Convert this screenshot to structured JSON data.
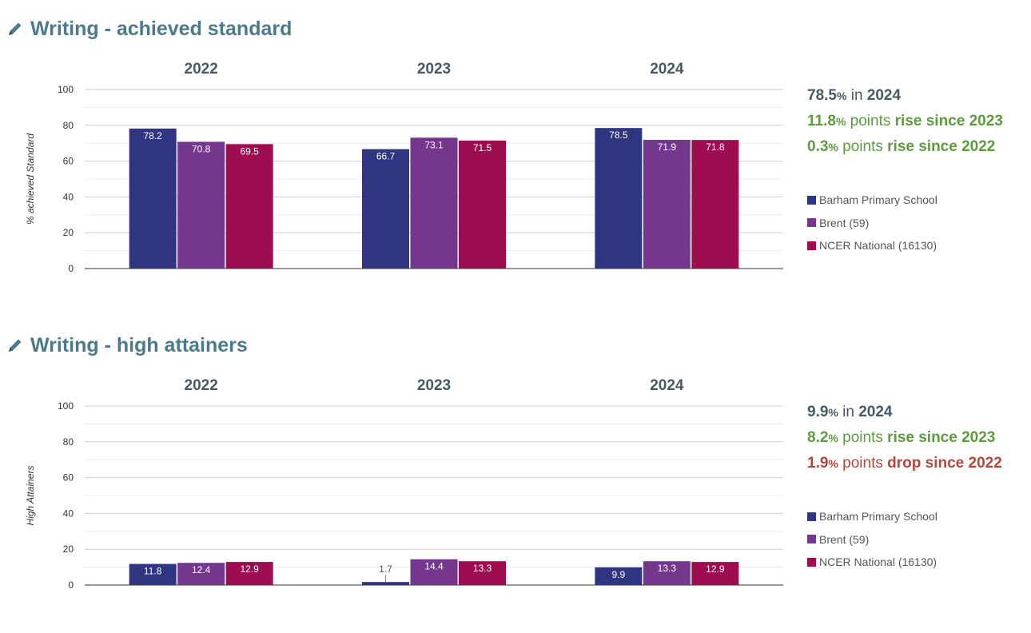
{
  "colors": {
    "school": "#2f3580",
    "la": "#75378e",
    "national": "#9e0d4f"
  },
  "sections": [
    {
      "title": "Writing - achieved standard",
      "icon": "pencil-icon",
      "summary": [
        {
          "value": "78.5",
          "unit": "%",
          "text": " in ",
          "strong": "2024",
          "tone": "neutral"
        },
        {
          "value": "11.8",
          "unit": "%",
          "text": " points ",
          "strong": "rise since 2023",
          "tone": "rise"
        },
        {
          "value": "0.3",
          "unit": "%",
          "text": " points ",
          "strong": "rise since 2022",
          "tone": "rise"
        }
      ],
      "legend": [
        "Barham Primary School",
        "Brent (59)",
        "NCER National (16130)"
      ],
      "chart_data": {
        "type": "bar",
        "categories": [
          "2022",
          "2023",
          "2024"
        ],
        "ylabel": "% achieved Standard",
        "ylim": [
          0,
          100
        ],
        "yticks": [
          0,
          20,
          40,
          60,
          80,
          100
        ],
        "grid": true,
        "legend_position": "right",
        "series": [
          {
            "name": "Barham Primary School",
            "values": [
              78.2,
              66.7,
              78.5
            ]
          },
          {
            "name": "Brent (59)",
            "values": [
              70.8,
              73.1,
              71.9
            ]
          },
          {
            "name": "NCER National (16130)",
            "values": [
              69.5,
              71.5,
              71.8
            ]
          }
        ]
      }
    },
    {
      "title": "Writing - high attainers",
      "icon": "pencil-icon",
      "summary": [
        {
          "value": "9.9",
          "unit": "%",
          "text": " in ",
          "strong": "2024",
          "tone": "neutral"
        },
        {
          "value": "8.2",
          "unit": "%",
          "text": " points ",
          "strong": "rise since 2023",
          "tone": "rise"
        },
        {
          "value": "1.9",
          "unit": "%",
          "text": " points ",
          "strong": "drop since 2022",
          "tone": "drop"
        }
      ],
      "legend": [
        "Barham Primary School",
        "Brent (59)",
        "NCER National (16130)"
      ],
      "chart_data": {
        "type": "bar",
        "categories": [
          "2022",
          "2023",
          "2024"
        ],
        "ylabel": "High Attainers",
        "ylim": [
          0,
          100
        ],
        "yticks": [
          0,
          20,
          40,
          60,
          80,
          100
        ],
        "grid": true,
        "legend_position": "right",
        "series": [
          {
            "name": "Barham Primary School",
            "values": [
              11.8,
              1.7,
              9.9
            ]
          },
          {
            "name": "Brent (59)",
            "values": [
              12.4,
              14.4,
              13.3
            ]
          },
          {
            "name": "NCER National (16130)",
            "values": [
              12.9,
              13.3,
              12.9
            ]
          }
        ]
      }
    }
  ]
}
